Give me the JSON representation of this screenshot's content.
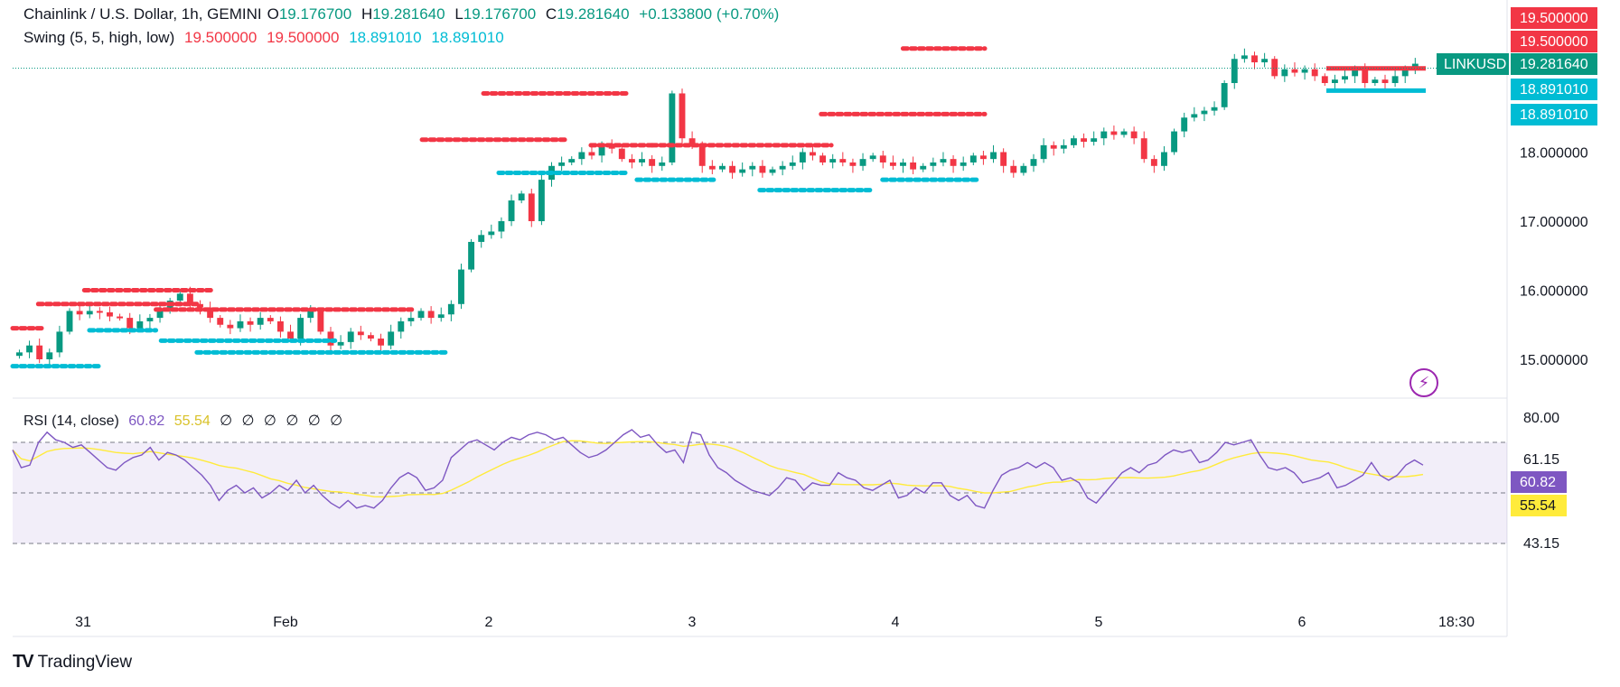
{
  "header": {
    "symbol": "Chainlink / U.S. Dollar, 1h, GEMINI",
    "open_label": "O",
    "open": "19.176700",
    "high_label": "H",
    "high": "19.281640",
    "low_label": "L",
    "low": "19.176700",
    "close_label": "C",
    "close": "19.281640",
    "change": "+0.133800 (+0.70%)"
  },
  "swing_legend": {
    "label": "Swing (5, 5, high, low)",
    "v1": "19.500000",
    "v2": "19.500000",
    "v3": "18.891010",
    "v4": "18.891010"
  },
  "rsi_legend": {
    "label": "RSI (14, close)",
    "rsi": "60.82",
    "ma": "55.54",
    "extras": [
      "∅",
      "∅",
      "∅",
      "∅",
      "∅",
      "∅"
    ]
  },
  "price_axis": {
    "ticks": [
      "15.000000",
      "16.000000",
      "17.000000",
      "18.000000"
    ],
    "badges": [
      {
        "text": "19.500000",
        "value": 19.5,
        "color": "#f23645"
      },
      {
        "text": "19.500000",
        "value": 19.5,
        "color": "#f23645"
      },
      {
        "text": "19.281640",
        "value": 19.28164,
        "color": "#089981"
      },
      {
        "text": "18.891010",
        "value": 18.89101,
        "color": "#00bcd4"
      },
      {
        "text": "18.891010",
        "value": 18.89101,
        "color": "#00bcd4"
      }
    ],
    "symbol_badge": "LINKUSD"
  },
  "rsi_axis": {
    "ticks": [
      "80.00",
      "61.15",
      "43.15"
    ],
    "badges": [
      {
        "text": "60.82",
        "color": "#7e57c2"
      },
      {
        "text": "55.54",
        "color": "#ffeb3b"
      }
    ]
  },
  "time_axis": {
    "labels": [
      "31",
      "Feb",
      "2",
      "3",
      "4",
      "5",
      "6"
    ],
    "cursor_label": "18:30"
  },
  "colors": {
    "up": "#089981",
    "down": "#f23645",
    "swing_high": "#f23645",
    "swing_low": "#00bcd4",
    "rsi": "#7e57c2",
    "rsi_ma": "#ffeb3b"
  },
  "footer": {
    "brand": "TradingView"
  },
  "chart_data": {
    "type": "candlestick",
    "ylim": [
      14.5,
      19.8
    ],
    "closes": [
      15.1,
      15.2,
      15.0,
      15.1,
      15.4,
      15.7,
      15.65,
      15.7,
      15.68,
      15.62,
      15.6,
      15.45,
      15.55,
      15.6,
      15.7,
      15.85,
      15.95,
      15.8,
      15.75,
      15.6,
      15.5,
      15.45,
      15.55,
      15.5,
      15.6,
      15.55,
      15.4,
      15.3,
      15.6,
      15.7,
      15.4,
      15.2,
      15.25,
      15.4,
      15.35,
      15.3,
      15.2,
      15.4,
      15.55,
      15.6,
      15.7,
      15.6,
      15.65,
      15.8,
      16.3,
      16.7,
      16.8,
      16.85,
      17.0,
      17.3,
      17.4,
      17.0,
      17.6,
      17.8,
      17.85,
      17.9,
      18.0,
      17.95,
      18.1,
      18.05,
      17.9,
      17.85,
      17.9,
      17.8,
      17.85,
      18.85,
      18.2,
      18.1,
      17.8,
      17.75,
      17.8,
      17.7,
      17.75,
      17.8,
      17.7,
      17.75,
      17.8,
      17.85,
      18.0,
      17.95,
      17.85,
      17.9,
      17.85,
      17.8,
      17.9,
      17.95,
      17.85,
      17.8,
      17.85,
      17.75,
      17.8,
      17.85,
      17.9,
      17.8,
      17.85,
      17.95,
      17.9,
      18.0,
      17.8,
      17.7,
      17.8,
      17.9,
      18.1,
      18.05,
      18.1,
      18.2,
      18.15,
      18.2,
      18.3,
      18.25,
      18.3,
      18.2,
      17.9,
      17.8,
      18.0,
      18.3,
      18.5,
      18.55,
      18.6,
      18.65,
      19.0,
      19.35,
      19.4,
      19.3,
      19.35,
      19.1,
      19.2,
      19.15,
      19.2,
      19.1,
      19.0,
      19.05,
      19.1,
      19.2,
      19.0,
      19.05,
      19.0,
      19.1,
      19.2,
      19.28
    ],
    "rsi": [
      67,
      60,
      61,
      70,
      74,
      71,
      70,
      68,
      69,
      66,
      63,
      60,
      59,
      62,
      64,
      65,
      68,
      63,
      66,
      65,
      63,
      60,
      57,
      53,
      47,
      51,
      53,
      50,
      52,
      48,
      50,
      53,
      51,
      55,
      50,
      53,
      49,
      46,
      44,
      47,
      44,
      45,
      44,
      47,
      52,
      56,
      58,
      56,
      51,
      52,
      55,
      64,
      67,
      70,
      71,
      69,
      67,
      70,
      72,
      71,
      73,
      74,
      73,
      71,
      72,
      69,
      66,
      64,
      65,
      67,
      70,
      73,
      75,
      72,
      73,
      69,
      66,
      67,
      62,
      74,
      73,
      65,
      60,
      58,
      55,
      53,
      51,
      50,
      49,
      52,
      56,
      55,
      51,
      54,
      53,
      53,
      58,
      56,
      55,
      52,
      51,
      53,
      55,
      48,
      49,
      52,
      50,
      54,
      54,
      49,
      47,
      49,
      45,
      44,
      51,
      57,
      59,
      60,
      62,
      60,
      62,
      60,
      55,
      56,
      54,
      48,
      46,
      50,
      54,
      58,
      60,
      58,
      61,
      62,
      65,
      67,
      66,
      67,
      62,
      63,
      66,
      70,
      69,
      70,
      71,
      65,
      60,
      59,
      60,
      58,
      54,
      55,
      56,
      58,
      52,
      53,
      55,
      57,
      62,
      57,
      55,
      57,
      61,
      63,
      61
    ]
  }
}
